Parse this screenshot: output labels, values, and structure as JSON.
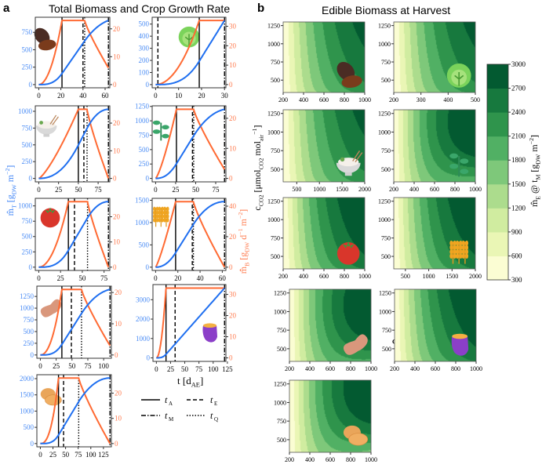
{
  "panel_a": {
    "label": "a",
    "title": "Total Biomass and Crop Growth Rate",
    "y_left_label": [
      {
        "t": "m̂"
      },
      {
        "t": "T",
        "s": "sub"
      },
      {
        "t": " [g"
      },
      {
        "t": "DW",
        "s": "sub"
      },
      {
        "t": " m"
      },
      {
        "t": "−2",
        "s": "sup"
      },
      {
        "t": "]"
      }
    ],
    "y_right_label": [
      {
        "t": "m̂̇"
      },
      {
        "t": "B",
        "s": "sub"
      },
      {
        "t": " [g"
      },
      {
        "t": "DW",
        "s": "sub"
      },
      {
        "t": " d"
      },
      {
        "t": "−1",
        "s": "sup"
      },
      {
        "t": " m"
      },
      {
        "t": "−2",
        "s": "sup"
      },
      {
        "t": "]"
      }
    ],
    "x_label": [
      {
        "t": "t [d"
      },
      {
        "t": "AE",
        "s": "sub"
      },
      {
        "t": "]"
      }
    ],
    "legend": [
      {
        "main": "t",
        "sub": "A",
        "style": "solid"
      },
      {
        "main": "t",
        "sub": "E",
        "style": "dashed"
      },
      {
        "main": "t",
        "sub": "M",
        "style": "dashdot"
      },
      {
        "main": "t",
        "sub": "Q",
        "style": "dotted"
      }
    ],
    "colors": {
      "biomass": "#1f6ff0",
      "growth_rate": "#ff6a33",
      "left_tick": "#4a8cf5",
      "right_tick": "#ff7a4d"
    }
  },
  "panel_b": {
    "label": "b",
    "title": "Edible Biomass at Harvest",
    "y_label": [
      {
        "t": "c"
      },
      {
        "t": "CO2",
        "s": "sub"
      },
      {
        "t": " [μmol"
      },
      {
        "t": "CO2",
        "s": "sub"
      },
      {
        "t": " mol"
      },
      {
        "t": "air",
        "s": "sub"
      },
      {
        "t": "−1",
        "s": "sup"
      },
      {
        "t": "]"
      }
    ],
    "x_label": [
      {
        "t": "Φ"
      },
      {
        "t": "γ",
        "s": "sub"
      },
      {
        "t": " [μmol"
      },
      {
        "t": "γ",
        "s": "sub"
      },
      {
        "t": " m"
      },
      {
        "t": "−2",
        "s": "sup"
      },
      {
        "t": " s"
      },
      {
        "t": "−1",
        "s": "sup"
      },
      {
        "t": "]"
      }
    ],
    "colorbar_label": [
      {
        "t": "m̂"
      },
      {
        "t": "E",
        "s": "sub"
      },
      {
        "t": " @ t"
      },
      {
        "t": "M",
        "s": "sub"
      },
      {
        "t": " [g"
      },
      {
        "t": "DW",
        "s": "sub"
      },
      {
        "t": " m"
      },
      {
        "t": "−2",
        "s": "sup"
      },
      {
        "t": "]"
      }
    ],
    "colorbar_ticks": [
      300,
      600,
      900,
      1200,
      1500,
      1800,
      2100,
      2400,
      2700,
      3000
    ],
    "colorbar_colors": [
      "#fbfdd3",
      "#eaf6b5",
      "#d0eca0",
      "#acdc8d",
      "#7ec87a",
      "#51b064",
      "#2f944c",
      "#17793e",
      "#035a31"
    ]
  },
  "chart_data": [
    {
      "type": "line",
      "icon": "coffee-bean-icon",
      "xticks": [
        0,
        20,
        40,
        60
      ],
      "yticks_left": [
        0,
        250,
        500,
        750
      ],
      "yticks_right": [
        0,
        10,
        20
      ],
      "t_A": 21,
      "t_E": 40,
      "t_Q": 41.5,
      "t_M": 63,
      "growth_rate_peak": 23,
      "growth_rate_end": 6,
      "biomass_final": 920,
      "ramp_power": 2,
      "series": [
        {
          "name": "total biomass",
          "axis": "left"
        },
        {
          "name": "crop growth rate",
          "axis": "right"
        }
      ]
    },
    {
      "type": "line",
      "icon": "lettuce-icon",
      "xticks": [
        0,
        10,
        20,
        30
      ],
      "yticks_left": [
        0,
        100,
        200,
        300,
        400,
        500
      ],
      "yticks_right": [
        0,
        10,
        20,
        30
      ],
      "t_A": 19,
      "t_E": 1,
      "t_Q": null,
      "t_M": 30,
      "growth_rate_peak": 33,
      "growth_rate_end": 33,
      "biomass_final": 530,
      "ramp_power": 2,
      "series": [
        {
          "name": "total biomass",
          "axis": "left"
        },
        {
          "name": "crop growth rate",
          "axis": "right"
        }
      ]
    },
    {
      "type": "line",
      "icon": "rice-bowl-icon",
      "xticks": [
        0,
        25,
        50,
        75
      ],
      "yticks_left": [
        0,
        250,
        500,
        750,
        1000
      ],
      "yticks_right": [
        0,
        10,
        20
      ],
      "t_A": 50,
      "t_E": 57,
      "t_Q": 61,
      "t_M": 88,
      "growth_rate_peak": 25,
      "growth_rate_end": 0,
      "biomass_final": 1030,
      "ramp_power": 1.3,
      "series": [
        {
          "name": "total biomass",
          "axis": "left"
        },
        {
          "name": "crop growth rate",
          "axis": "right"
        }
      ]
    },
    {
      "type": "line",
      "icon": "soybean-plant-icon",
      "xticks": [
        0,
        25,
        50,
        75
      ],
      "yticks_left": [
        0,
        250,
        500,
        750,
        1000,
        1250
      ],
      "yticks_right": [
        0,
        10,
        20
      ],
      "t_A": 26,
      "t_E": 46,
      "t_Q": 47.5,
      "t_M": 86,
      "growth_rate_peak": 23,
      "growth_rate_end": 3,
      "biomass_final": 1200,
      "ramp_power": 1.3,
      "series": [
        {
          "name": "total biomass",
          "axis": "left"
        },
        {
          "name": "crop growth rate",
          "axis": "right"
        }
      ]
    },
    {
      "type": "line",
      "icon": "tomato-icon",
      "xticks": [
        0,
        25,
        50,
        75
      ],
      "yticks_left": [
        0,
        250,
        500,
        750,
        1000
      ],
      "yticks_right": [
        0,
        10,
        20
      ],
      "t_A": 34,
      "t_E": 41,
      "t_Q": 56,
      "t_M": 80,
      "growth_rate_peak": 26,
      "growth_rate_end": 0,
      "biomass_final": 1070,
      "ramp_power": 2,
      "series": [
        {
          "name": "total biomass",
          "axis": "left"
        },
        {
          "name": "crop growth rate",
          "axis": "right"
        }
      ]
    },
    {
      "type": "line",
      "icon": "wheat-icon",
      "xticks": [
        0,
        20,
        40,
        60
      ],
      "yticks_left": [
        0,
        500,
        1000,
        1500
      ],
      "yticks_right": [
        0,
        20,
        40
      ],
      "t_A": 18,
      "t_E": 33,
      "t_Q": 34,
      "t_M": 62,
      "growth_rate_peak": 43,
      "growth_rate_end": 0,
      "biomass_final": 1470,
      "ramp_power": 1.2,
      "series": [
        {
          "name": "total biomass",
          "axis": "left"
        },
        {
          "name": "crop growth rate",
          "axis": "right"
        }
      ]
    },
    {
      "type": "line",
      "icon": "peanut-icon",
      "xticks": [
        0,
        25,
        50,
        75,
        100
      ],
      "yticks_left": [
        0,
        250,
        500,
        750,
        1000,
        1250
      ],
      "yticks_right": [
        0,
        10,
        20
      ],
      "t_A": 34,
      "t_E": 49,
      "t_Q": 65,
      "t_M": 110,
      "growth_rate_peak": 21,
      "growth_rate_end": 3,
      "biomass_final": 1400,
      "ramp_power": 2.2,
      "series": [
        {
          "name": "total biomass",
          "axis": "left"
        },
        {
          "name": "crop growth rate",
          "axis": "right"
        }
      ]
    },
    {
      "type": "line",
      "icon": "sweet-potato-icon",
      "xticks": [
        0,
        25,
        50,
        75,
        100,
        125
      ],
      "yticks_left": [
        0,
        1000,
        2000,
        3000
      ],
      "yticks_right": [
        0,
        10,
        20,
        30
      ],
      "t_A": 17,
      "t_E": 33,
      "t_Q": null,
      "t_M": 120,
      "growth_rate_peak": 33,
      "growth_rate_end": 33,
      "biomass_final": 3600,
      "ramp_power": 2,
      "series": [
        {
          "name": "total biomass",
          "axis": "left"
        },
        {
          "name": "crop growth rate",
          "axis": "right"
        }
      ]
    },
    {
      "type": "line",
      "icon": "potato-icon",
      "xticks": [
        0,
        25,
        50,
        75,
        100,
        125
      ],
      "yticks_left": [
        0,
        500,
        1000,
        1500,
        2000
      ],
      "yticks_right": [
        0,
        10,
        20
      ],
      "t_A": 36,
      "t_E": 46,
      "t_Q": 76,
      "t_M": 138,
      "growth_rate_peak": 26,
      "growth_rate_end": 0,
      "biomass_final": 2020,
      "ramp_power": 2.5,
      "series": [
        {
          "name": "total biomass",
          "axis": "left"
        },
        {
          "name": "crop growth rate",
          "axis": "right"
        }
      ]
    },
    {
      "type": "heatmap",
      "icon": "coffee-bean-icon",
      "xlim": [
        200,
        1000
      ],
      "xticks": [
        200,
        400,
        600,
        800,
        1000
      ],
      "ylim": [
        330,
        1300
      ],
      "yticks": [
        500,
        750,
        1000,
        1250
      ],
      "max_level": 2700,
      "optimum_co2": null
    },
    {
      "type": "heatmap",
      "icon": "lettuce-icon",
      "xlim": [
        200,
        500
      ],
      "xticks": [
        200,
        300,
        400,
        500
      ],
      "ylim": [
        330,
        1300
      ],
      "yticks": [
        500,
        750,
        1000,
        1250
      ],
      "max_level": 2700,
      "optimum_co2": null
    },
    {
      "type": "heatmap",
      "icon": "rice-bowl-icon",
      "xlim": [
        200,
        2000
      ],
      "xticks": [
        500,
        1000,
        1500,
        2000
      ],
      "ylim": [
        330,
        1300
      ],
      "yticks": [
        500,
        750,
        1000,
        1250
      ],
      "max_level": 2700,
      "optimum_co2": null
    },
    {
      "type": "heatmap",
      "icon": "soybean-plant-icon",
      "xlim": [
        200,
        1000
      ],
      "xticks": [
        200,
        400,
        600,
        800,
        1000
      ],
      "ylim": [
        330,
        1300
      ],
      "yticks": [
        500,
        750,
        1000,
        1250
      ],
      "max_level": 3000,
      "optimum_co2": 1150
    },
    {
      "type": "heatmap",
      "icon": "tomato-icon",
      "xlim": [
        200,
        1000
      ],
      "xticks": [
        200,
        400,
        600,
        800,
        1000
      ],
      "ylim": [
        330,
        1300
      ],
      "yticks": [
        500,
        750,
        1000,
        1250
      ],
      "max_level": 3000,
      "optimum_co2": null
    },
    {
      "type": "heatmap",
      "icon": "wheat-icon",
      "xlim": [
        250,
        2000
      ],
      "xticks": [
        500,
        1000,
        1500,
        2000
      ],
      "ylim": [
        330,
        1300
      ],
      "yticks": [
        500,
        750,
        1000,
        1250
      ],
      "max_level": 3000,
      "optimum_co2": null
    },
    {
      "type": "heatmap",
      "icon": "peanut-icon",
      "xlim": [
        200,
        1000
      ],
      "xticks": [
        200,
        400,
        600,
        800,
        1000
      ],
      "ylim": [
        330,
        1300
      ],
      "yticks": [
        500,
        750,
        1000,
        1250
      ],
      "max_level": 3000,
      "optimum_co2": 1100
    },
    {
      "type": "heatmap",
      "icon": "sweet-potato-icon",
      "xlim": [
        200,
        1000
      ],
      "xticks": [
        200,
        400,
        600,
        800,
        1000
      ],
      "ylim": [
        330,
        1300
      ],
      "yticks": [
        500,
        750,
        1000,
        1250
      ],
      "max_level": 3000,
      "optimum_co2": null
    },
    {
      "type": "heatmap",
      "icon": "potato-icon",
      "xlim": [
        200,
        1000
      ],
      "xticks": [
        200,
        400,
        600,
        800,
        1000
      ],
      "ylim": [
        330,
        1300
      ],
      "yticks": [
        500,
        750,
        1000,
        1250
      ],
      "max_level": 3000,
      "optimum_co2": 1200
    }
  ]
}
